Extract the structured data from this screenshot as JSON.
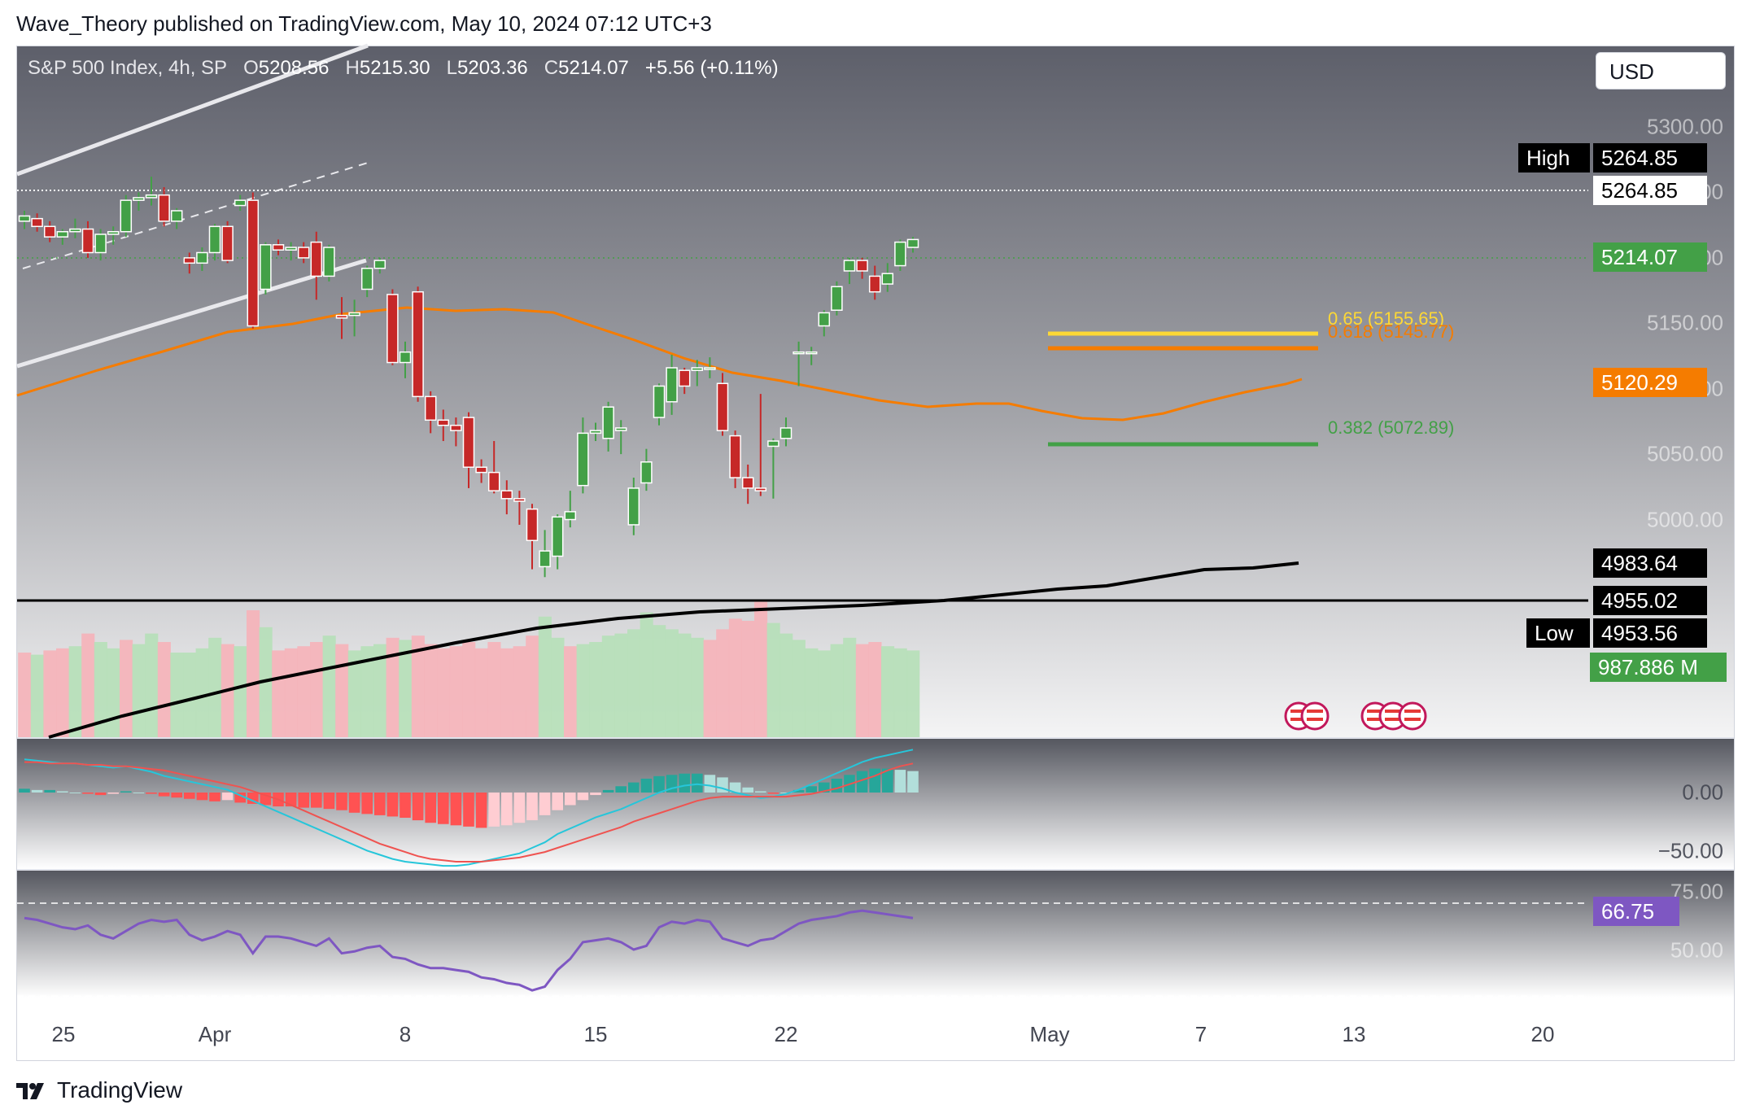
{
  "publisher": "Wave_Theory published on TradingView.com, May 10, 2024 07:12 UTC+3",
  "brand": "TradingView",
  "currency": "USD",
  "legend": {
    "symbol": "S&P 500 Index, 4h, SP",
    "open_label": "O",
    "open": "5208.56",
    "high_label": "H",
    "high": "5215.30",
    "low_label": "L",
    "low": "5203.36",
    "close_label": "C",
    "close": "5214.07",
    "change": "+5.56 (+0.11%)"
  },
  "price_labels": {
    "high_tag": "High",
    "high_value": "5264.85",
    "high_line_value": "5264.85",
    "last": "5214.07",
    "ema": "5120.29",
    "sma": "4983.64",
    "support": "4955.02",
    "low_tag": "Low",
    "low_value": "4953.56",
    "volume": "987.886 M",
    "macd_zero": "0.00",
    "macd_low": "−50.00",
    "rsi_75": "75.00",
    "rsi_50": "50.00",
    "rsi": "66.75"
  },
  "y_axis_ticks": [
    "5300.00",
    "5250.00",
    "5200.00",
    "5150.00",
    "5100.00",
    "5050.00",
    "5000.00"
  ],
  "x_axis_ticks": [
    "25",
    "Apr",
    "8",
    "15",
    "22",
    "May",
    "7",
    "13",
    "20"
  ],
  "fib_levels": [
    {
      "label": "0.65 (5155.65)",
      "value": 5155.65,
      "color": "#fdd835"
    },
    {
      "label": "0.618 (5145.77)",
      "value": 5145.77,
      "color": "#f57c00"
    },
    {
      "label": "0.382 (5072.89)",
      "value": 5072.89,
      "color": "#43a047"
    }
  ],
  "colors": {
    "up": "#26a69a",
    "candle_up": "#43a047",
    "candle_down": "#c62828",
    "ema": "#f57c00",
    "sma": "#000000",
    "rsi": "#7e57c2",
    "macd": "#26c6da",
    "signal": "#ef5350"
  },
  "chart_data": {
    "type": "candlestick",
    "timeframe": "4h",
    "ylim": [
      4940,
      5310
    ],
    "candles": [
      [
        5228,
        5236,
        5222,
        5232
      ],
      [
        5230,
        5234,
        5220,
        5224
      ],
      [
        5224,
        5228,
        5212,
        5216
      ],
      [
        5216,
        5222,
        5210,
        5220
      ],
      [
        5220,
        5230,
        5215,
        5222
      ],
      [
        5222,
        5228,
        5200,
        5204
      ],
      [
        5204,
        5222,
        5198,
        5218
      ],
      [
        5218,
        5224,
        5210,
        5220
      ],
      [
        5220,
        5248,
        5216,
        5244
      ],
      [
        5244,
        5250,
        5236,
        5246
      ],
      [
        5246,
        5262,
        5240,
        5248
      ],
      [
        5248,
        5254,
        5224,
        5228
      ],
      [
        5228,
        5238,
        5222,
        5236
      ],
      [
        5200,
        5204,
        5188,
        5196
      ],
      [
        5196,
        5208,
        5190,
        5204
      ],
      [
        5204,
        5226,
        5198,
        5224
      ],
      [
        5224,
        5228,
        5196,
        5198
      ],
      [
        5240,
        5248,
        5236,
        5244
      ],
      [
        5244,
        5250,
        5146,
        5148
      ],
      [
        5176,
        5212,
        5172,
        5210
      ],
      [
        5210,
        5214,
        5202,
        5206
      ],
      [
        5206,
        5212,
        5198,
        5208
      ],
      [
        5208,
        5212,
        5196,
        5200
      ],
      [
        5212,
        5220,
        5168,
        5186
      ],
      [
        5186,
        5210,
        5182,
        5208
      ],
      [
        5156,
        5170,
        5138,
        5154
      ],
      [
        5156,
        5168,
        5140,
        5158
      ],
      [
        5176,
        5194,
        5170,
        5192
      ],
      [
        5192,
        5200,
        5188,
        5198
      ],
      [
        5172,
        5176,
        5118,
        5120
      ],
      [
        5120,
        5136,
        5108,
        5128
      ],
      [
        5174,
        5178,
        5090,
        5094
      ],
      [
        5094,
        5098,
        5066,
        5076
      ],
      [
        5076,
        5084,
        5060,
        5072
      ],
      [
        5072,
        5078,
        5056,
        5068
      ],
      [
        5078,
        5082,
        5024,
        5040
      ],
      [
        5040,
        5046,
        5028,
        5036
      ],
      [
        5036,
        5060,
        5020,
        5022
      ],
      [
        5022,
        5030,
        5004,
        5016
      ],
      [
        5016,
        5022,
        4996,
        5014
      ],
      [
        5008,
        5012,
        4962,
        4984
      ],
      [
        4964,
        4992,
        4956,
        4976
      ],
      [
        4972,
        5004,
        4962,
        5002
      ],
      [
        5000,
        5022,
        4994,
        5006
      ],
      [
        5026,
        5078,
        5020,
        5066
      ],
      [
        5066,
        5074,
        5060,
        5068
      ],
      [
        5062,
        5090,
        5052,
        5086
      ],
      [
        5068,
        5076,
        5050,
        5070
      ],
      [
        4996,
        5032,
        4988,
        5024
      ],
      [
        5028,
        5054,
        5022,
        5044
      ],
      [
        5078,
        5104,
        5072,
        5102
      ],
      [
        5090,
        5126,
        5080,
        5116
      ],
      [
        5114,
        5116,
        5096,
        5102
      ],
      [
        5114,
        5122,
        5102,
        5116
      ],
      [
        5116,
        5124,
        5108,
        5116
      ],
      [
        5104,
        5112,
        5064,
        5068
      ],
      [
        5064,
        5068,
        5024,
        5032
      ],
      [
        5032,
        5042,
        5012,
        5024
      ],
      [
        5024,
        5096,
        5018,
        5022
      ],
      [
        5056,
        5062,
        5016,
        5060
      ],
      [
        5062,
        5078,
        5056,
        5070
      ],
      [
        5128,
        5136,
        5102,
        5128
      ],
      [
        5128,
        5132,
        5118,
        5128
      ],
      [
        5148,
        5160,
        5140,
        5158
      ],
      [
        5160,
        5182,
        5156,
        5178
      ],
      [
        5190,
        5200,
        5180,
        5198
      ],
      [
        5198,
        5200,
        5184,
        5190
      ],
      [
        5186,
        5194,
        5168,
        5174
      ],
      [
        5180,
        5196,
        5174,
        5188
      ],
      [
        5194,
        5214,
        5190,
        5212
      ],
      [
        5208,
        5216,
        5204,
        5214
      ]
    ],
    "volume": [
      [
        0.8,
        "d"
      ],
      [
        0.78,
        "u"
      ],
      [
        0.82,
        "d"
      ],
      [
        0.84,
        "d"
      ],
      [
        0.86,
        "u"
      ],
      [
        0.98,
        "d"
      ],
      [
        0.9,
        "u"
      ],
      [
        0.84,
        "u"
      ],
      [
        0.92,
        "d"
      ],
      [
        0.88,
        "u"
      ],
      [
        0.98,
        "u"
      ],
      [
        0.9,
        "d"
      ],
      [
        0.8,
        "u"
      ],
      [
        0.8,
        "u"
      ],
      [
        0.84,
        "u"
      ],
      [
        0.94,
        "u"
      ],
      [
        0.88,
        "d"
      ],
      [
        0.86,
        "u"
      ],
      [
        1.2,
        "d"
      ],
      [
        1.04,
        "u"
      ],
      [
        0.82,
        "d"
      ],
      [
        0.84,
        "d"
      ],
      [
        0.86,
        "d"
      ],
      [
        0.9,
        "d"
      ],
      [
        0.96,
        "u"
      ],
      [
        0.88,
        "d"
      ],
      [
        0.82,
        "u"
      ],
      [
        0.86,
        "u"
      ],
      [
        0.88,
        "u"
      ],
      [
        0.94,
        "d"
      ],
      [
        0.92,
        "u"
      ],
      [
        0.96,
        "d"
      ],
      [
        0.88,
        "d"
      ],
      [
        0.84,
        "d"
      ],
      [
        0.86,
        "d"
      ],
      [
        0.9,
        "d"
      ],
      [
        0.84,
        "d"
      ],
      [
        0.9,
        "d"
      ],
      [
        0.84,
        "d"
      ],
      [
        0.86,
        "d"
      ],
      [
        0.96,
        "d"
      ],
      [
        1.14,
        "u"
      ],
      [
        0.94,
        "u"
      ],
      [
        0.86,
        "d"
      ],
      [
        0.88,
        "u"
      ],
      [
        0.9,
        "u"
      ],
      [
        0.96,
        "u"
      ],
      [
        0.98,
        "u"
      ],
      [
        1.02,
        "u"
      ],
      [
        1.18,
        "u"
      ],
      [
        1.06,
        "u"
      ],
      [
        1.02,
        "u"
      ],
      [
        0.98,
        "u"
      ],
      [
        0.94,
        "u"
      ],
      [
        0.92,
        "d"
      ],
      [
        1.02,
        "d"
      ],
      [
        1.12,
        "d"
      ],
      [
        1.1,
        "d"
      ],
      [
        1.28,
        "d"
      ],
      [
        1.08,
        "u"
      ],
      [
        0.98,
        "u"
      ],
      [
        0.92,
        "u"
      ],
      [
        0.84,
        "u"
      ],
      [
        0.82,
        "u"
      ],
      [
        0.88,
        "u"
      ],
      [
        0.94,
        "u"
      ],
      [
        0.88,
        "d"
      ],
      [
        0.9,
        "d"
      ],
      [
        0.86,
        "u"
      ],
      [
        0.84,
        "u"
      ],
      [
        0.82,
        "u"
      ]
    ],
    "macd_hist": [
      3,
      2,
      2,
      1,
      0,
      -1,
      -2,
      -1,
      1,
      0,
      -1,
      -3,
      -4,
      -5,
      -6,
      -7,
      -6,
      -8,
      -9,
      -10,
      -11,
      -11,
      -12,
      -12,
      -13,
      -14,
      -16,
      -17,
      -18,
      -19,
      -20,
      -22,
      -24,
      -25,
      -26,
      -27,
      -28,
      -27,
      -26,
      -24,
      -22,
      -18,
      -14,
      -10,
      -6,
      -2,
      2,
      5,
      8,
      11,
      13,
      14,
      15,
      15,
      14,
      12,
      8,
      4,
      1,
      -1,
      0,
      2,
      5,
      8,
      11,
      14,
      17,
      19,
      19,
      18,
      17
    ],
    "macd_line": [
      24,
      23,
      22,
      21,
      21,
      20,
      19,
      18,
      19,
      17,
      15,
      12,
      10,
      8,
      6,
      4,
      2,
      -2,
      -6,
      -10,
      -14,
      -18,
      -22,
      -26,
      -30,
      -34,
      -38,
      -42,
      -45,
      -48,
      -50,
      -51,
      -52,
      -53,
      -53,
      -52,
      -50,
      -48,
      -46,
      -44,
      -40,
      -36,
      -30,
      -26,
      -22,
      -18,
      -15,
      -12,
      -8,
      -4,
      0,
      3,
      5,
      6,
      5,
      3,
      0,
      -2,
      -4,
      -3,
      -1,
      2,
      6,
      10,
      14,
      18,
      22,
      25,
      27,
      29,
      31
    ],
    "signal_line": [
      22,
      22,
      21,
      21,
      21,
      20,
      20,
      19,
      19,
      18,
      17,
      16,
      14,
      12,
      10,
      8,
      6,
      4,
      1,
      -2,
      -5,
      -9,
      -13,
      -17,
      -21,
      -25,
      -29,
      -33,
      -37,
      -40,
      -43,
      -46,
      -48,
      -49,
      -50,
      -50,
      -50,
      -49,
      -48,
      -47,
      -45,
      -43,
      -40,
      -37,
      -34,
      -31,
      -28,
      -25,
      -21,
      -18,
      -15,
      -12,
      -9,
      -6,
      -4,
      -3,
      -3,
      -3,
      -3,
      -3,
      -3,
      -2,
      -1,
      1,
      3,
      6,
      9,
      12,
      16,
      19,
      21
    ],
    "rsi": [
      67,
      66,
      64,
      62,
      61,
      63,
      58,
      56,
      60,
      64,
      66,
      65,
      66,
      58,
      55,
      57,
      60,
      58,
      48,
      57,
      57,
      56,
      54,
      52,
      56,
      48,
      49,
      51,
      52,
      46,
      45,
      42,
      40,
      40,
      39,
      38,
      35,
      34,
      32,
      31,
      28,
      30,
      39,
      45,
      54,
      55,
      56,
      54,
      50,
      52,
      62,
      65,
      64,
      66,
      65,
      56,
      54,
      52,
      55,
      56,
      60,
      64,
      66,
      67,
      68,
      70,
      71,
      70,
      69,
      68,
      67
    ]
  }
}
